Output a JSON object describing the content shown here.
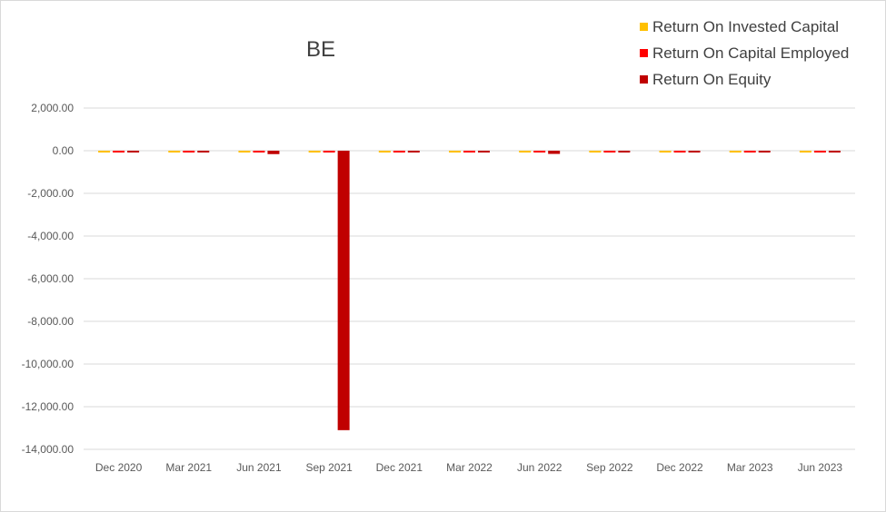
{
  "chart_data": {
    "type": "bar",
    "title": "BE",
    "xlabel": "",
    "ylabel": "",
    "ylim": [
      -14000,
      2000
    ],
    "y_ticks": [
      2000,
      0,
      -2000,
      -4000,
      -6000,
      -8000,
      -10000,
      -12000,
      -14000
    ],
    "y_tick_labels": [
      "2,000.00",
      "0.00",
      "-2,000.00",
      "-4,000.00",
      "-6,000.00",
      "-8,000.00",
      "-10,000.00",
      "-12,000.00",
      "-14,000.00"
    ],
    "grid": true,
    "legend_position": "top-right",
    "categories": [
      "Dec 2020",
      "Mar 2021",
      "Jun 2021",
      "Sep 2021",
      "Dec 2021",
      "Mar 2022",
      "Jun 2022",
      "Sep 2022",
      "Dec 2022",
      "Mar 2023",
      "Jun 2023"
    ],
    "series": [
      {
        "name": "Return On Invested Capital",
        "color": "#ffc000",
        "values": [
          -15,
          -10,
          -20,
          -25,
          -10,
          -10,
          -20,
          -10,
          -10,
          -10,
          -10
        ]
      },
      {
        "name": "Return On Capital Employed",
        "color": "#ff0000",
        "values": [
          -20,
          -15,
          -30,
          -30,
          -15,
          -15,
          -30,
          -15,
          -10,
          -15,
          -15
        ]
      },
      {
        "name": "Return On Equity",
        "color": "#c00000",
        "values": [
          -40,
          -40,
          -160,
          -13100,
          -40,
          -40,
          -150,
          -40,
          -30,
          -40,
          -40
        ]
      }
    ]
  }
}
